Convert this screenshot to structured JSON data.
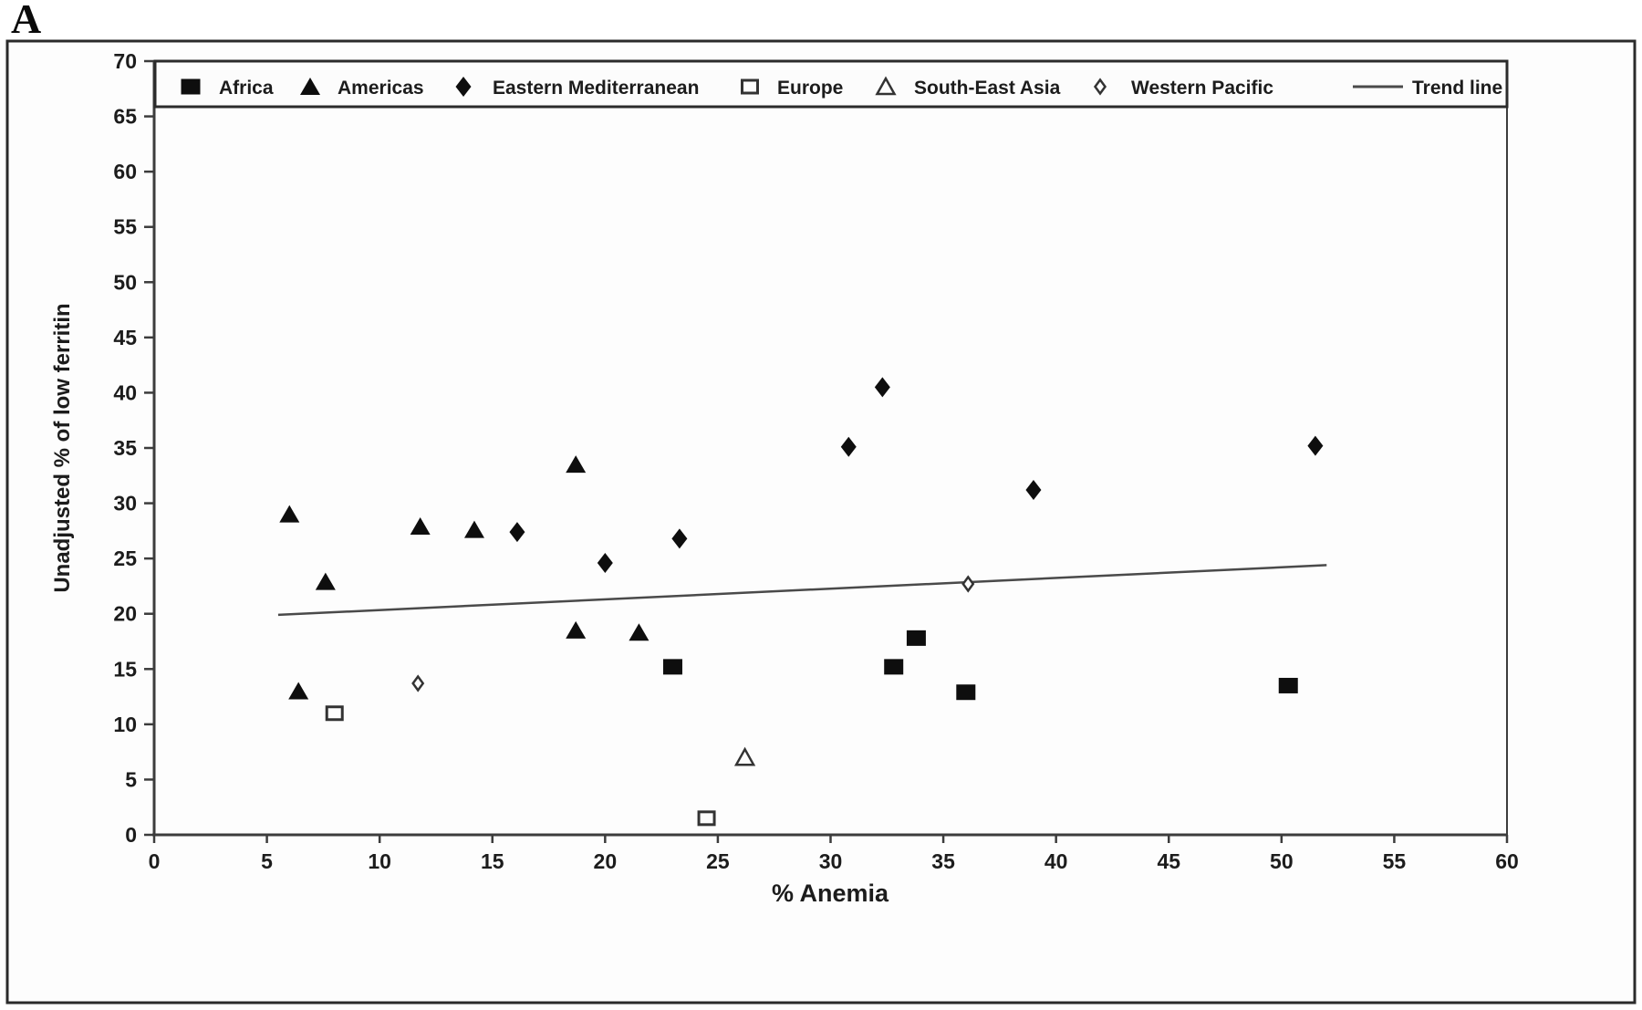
{
  "panel_label": "A",
  "colors": {
    "background": "#fdfdfd",
    "figure_border": "#2b2b2b",
    "axis": "#3c3c3c",
    "text": "#1c1c1c",
    "marker": "#0e0e0e",
    "trend_line": "#4a4a4a"
  },
  "chart_data": {
    "type": "scatter",
    "title": "",
    "xlabel": "% Anemia",
    "ylabel": "Unadjusted % of low ferritin",
    "xlim": [
      0,
      60
    ],
    "ylim": [
      0,
      70
    ],
    "xticks": [
      0,
      5,
      10,
      15,
      20,
      25,
      30,
      35,
      40,
      45,
      50,
      55,
      60
    ],
    "yticks": [
      0,
      5,
      10,
      15,
      20,
      25,
      30,
      35,
      40,
      45,
      50,
      55,
      60,
      65,
      70
    ],
    "grid": false,
    "legend_position": "top",
    "series": [
      {
        "name": "Africa",
        "marker": "filled-square",
        "points": [
          [
            23,
            15.2
          ],
          [
            32.8,
            15.2
          ],
          [
            33.8,
            17.8
          ],
          [
            36,
            12.9
          ],
          [
            50.3,
            13.5
          ]
        ]
      },
      {
        "name": "Americas",
        "marker": "filled-triangle",
        "points": [
          [
            6,
            29
          ],
          [
            7.6,
            22.9
          ],
          [
            6.4,
            13
          ],
          [
            11.8,
            27.9
          ],
          [
            14.2,
            27.6
          ],
          [
            18.7,
            33.5
          ],
          [
            18.7,
            18.5
          ],
          [
            21.5,
            18.3
          ]
        ]
      },
      {
        "name": "Eastern Mediterranean",
        "marker": "filled-diamond",
        "points": [
          [
            16.1,
            27.4
          ],
          [
            20,
            24.6
          ],
          [
            23.3,
            26.8
          ],
          [
            30.8,
            35.1
          ],
          [
            32.3,
            40.5
          ],
          [
            39,
            31.2
          ],
          [
            51.5,
            35.2
          ]
        ]
      },
      {
        "name": "Europe",
        "marker": "open-square",
        "points": [
          [
            8,
            11
          ],
          [
            24.5,
            1.5
          ]
        ]
      },
      {
        "name": "South-East Asia",
        "marker": "open-triangle",
        "points": [
          [
            26.2,
            7
          ]
        ]
      },
      {
        "name": "Western Pacific",
        "marker": "open-diamond",
        "points": [
          [
            11.7,
            13.7
          ],
          [
            36.1,
            22.7
          ]
        ]
      }
    ],
    "trend_line": {
      "label": "Trend line",
      "x1": 5.5,
      "y1": 19.9,
      "x2": 52,
      "y2": 24.4
    }
  }
}
